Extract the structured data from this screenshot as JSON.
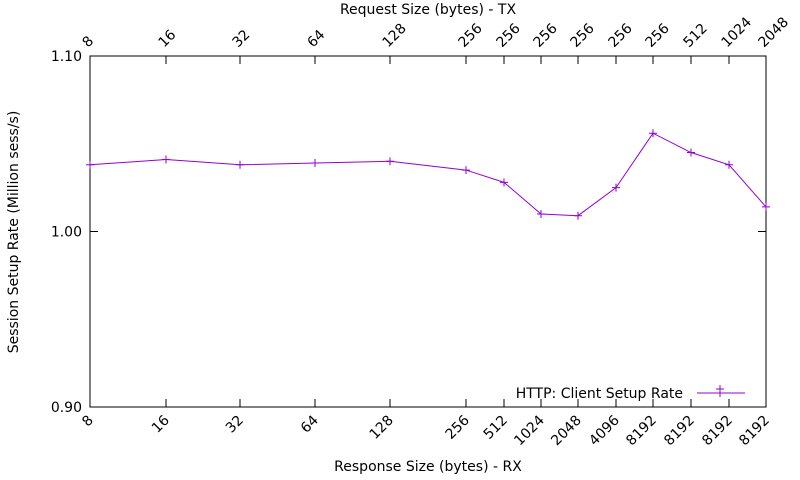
{
  "chart_data": {
    "type": "line",
    "title": "",
    "xlabel": "Response Size (bytes) - RX",
    "x2label": "Request Size (bytes) - TX",
    "ylabel": "Session Setup Rate (Million sess/s)",
    "ylim": [
      0.9,
      1.1
    ],
    "yticks": [
      "0.90",
      "1.00",
      "1.10"
    ],
    "grid": false,
    "legend_position": "bottom-right",
    "x_bottom_ticks": [
      "8",
      "16",
      "32",
      "64",
      "128",
      "256",
      "512",
      "1024",
      "2048",
      "4096",
      "8192",
      "8192",
      "8192",
      "8192"
    ],
    "x_top_ticks": [
      "8",
      "16",
      "32",
      "64",
      "128",
      "256",
      "256",
      "256",
      "256",
      "256",
      "256",
      "512",
      "1024",
      "2048"
    ],
    "series": [
      {
        "name": "HTTP: Client Setup Rate",
        "color": "#9400d3",
        "values": [
          1.038,
          1.041,
          1.038,
          1.039,
          1.04,
          1.035,
          1.028,
          1.01,
          1.009,
          1.025,
          1.056,
          1.045,
          1.038,
          1.014
        ]
      }
    ]
  }
}
